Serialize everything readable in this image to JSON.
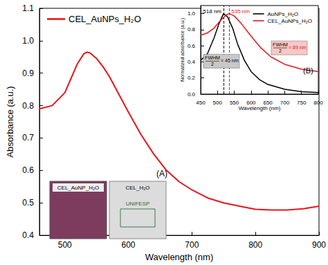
{
  "chart_data": [
    {
      "type": "line",
      "x_label": "Wavelength (nm)",
      "y_label": "Absorbance (a.u.)",
      "xlim": [
        460,
        900
      ],
      "xticks": [
        500,
        600,
        700,
        800,
        900
      ],
      "ylim": [
        0.4,
        1.1
      ],
      "yticks": [
        0.4,
        0.5,
        0.6,
        0.7,
        0.8,
        0.9,
        {
          "value": 1,
          "label": "1.0"
        },
        1.1
      ],
      "grid": false,
      "legend": "top-left",
      "series": [
        {
          "name": "CEL_AuNPs_H₂O",
          "color": "#e8141c",
          "x": [
            460,
            480,
            500,
            510,
            520,
            530,
            535,
            540,
            550,
            560,
            570,
            585,
            600,
            620,
            640,
            660,
            680,
            700,
            725,
            750,
            775,
            800,
            825,
            850,
            875,
            900
          ],
          "values": [
            0.79,
            0.8,
            0.84,
            0.885,
            0.93,
            0.96,
            0.965,
            0.962,
            0.945,
            0.92,
            0.89,
            0.835,
            0.78,
            0.71,
            0.65,
            0.6,
            0.565,
            0.54,
            0.515,
            0.5,
            0.49,
            0.48,
            0.478,
            0.478,
            0.482,
            0.49
          ]
        }
      ],
      "annotations": [
        "(A)",
        "CEL_AuNP_H₂O",
        "CEL_H₂O",
        "UNIFESP"
      ]
    },
    {
      "type": "line",
      "x_label": "Wavelength (nm)",
      "y_label": "Normalized absorbance (a.u.)",
      "xlim": [
        450,
        800
      ],
      "xticks": [
        450,
        500,
        550,
        600,
        650,
        700,
        750,
        800
      ],
      "ylim": [
        0,
        1.1
      ],
      "yticks": [
        {
          "value": 0,
          "label": "0.0"
        },
        0.2,
        0.4,
        0.6,
        0.8,
        {
          "value": 1,
          "label": "1.0"
        }
      ],
      "grid": false,
      "legend": "top-right",
      "series": [
        {
          "name": "AuNPs_H₂O",
          "color": "#000000",
          "x": [
            450,
            470,
            490,
            505,
            518,
            530,
            545,
            560,
            580,
            600,
            625,
            650,
            700,
            750,
            800
          ],
          "values": [
            0.42,
            0.5,
            0.7,
            0.88,
            1.0,
            0.96,
            0.82,
            0.62,
            0.42,
            0.28,
            0.18,
            0.12,
            0.06,
            0.03,
            0.02
          ],
          "peak": 518,
          "fwhm_half": 45,
          "peak_label": "518 nm",
          "fwhm_label": [
            "FWHM",
            "2",
            "= 45 nm"
          ]
        },
        {
          "name": "CEL_AuNPs_H₂O",
          "color": "#e8141c",
          "x": [
            450,
            470,
            490,
            510,
            525,
            535,
            550,
            570,
            600,
            630,
            660,
            700,
            750,
            800
          ],
          "values": [
            0.73,
            0.76,
            0.82,
            0.92,
            0.98,
            1.0,
            0.97,
            0.88,
            0.72,
            0.57,
            0.46,
            0.37,
            0.31,
            0.28
          ],
          "peak": 535,
          "fwhm_half": 89,
          "peak_label": "535 nm",
          "fwhm_label": [
            "FWHM",
            "2",
            "= 89 nm"
          ]
        }
      ],
      "annotations": [
        "(B)"
      ]
    }
  ]
}
